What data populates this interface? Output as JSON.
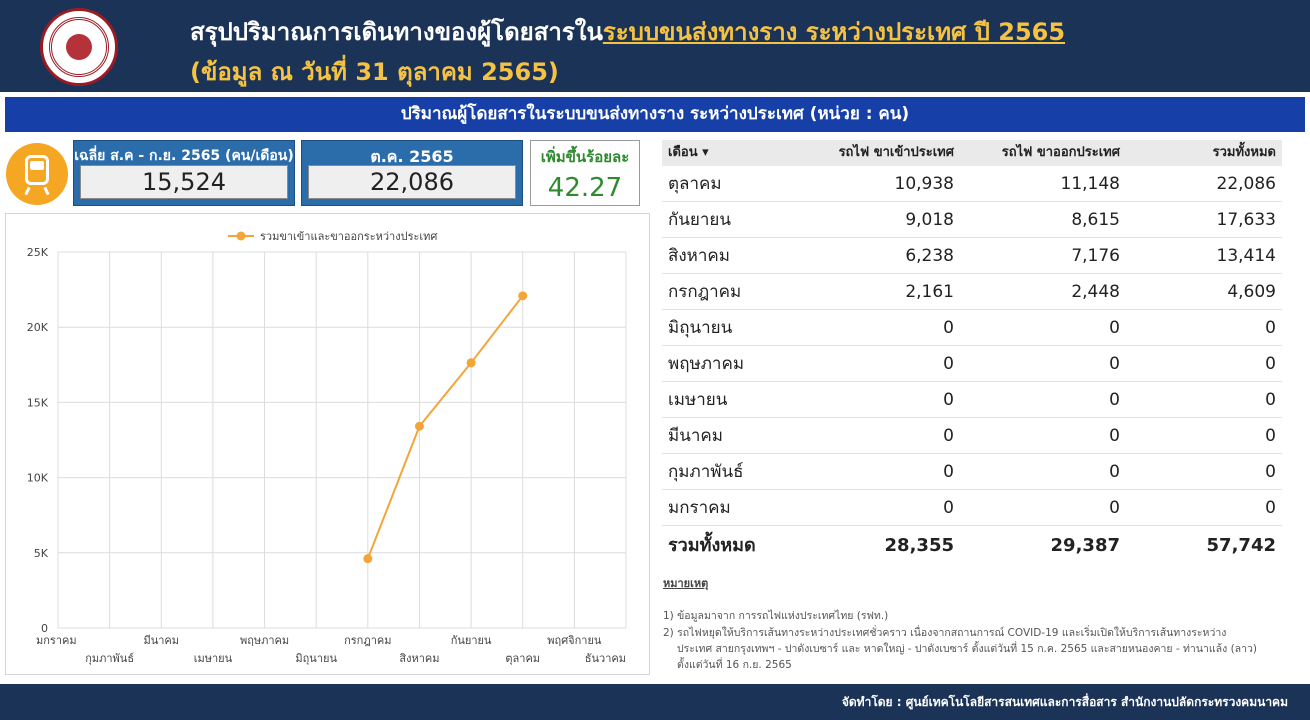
{
  "header": {
    "title_prefix": "สรุปปริมาณการเดินทางของผู้โดยสารใน",
    "title_highlight": "ระบบขนส่งทางราง ระหว่างประเทศ ปี 2565",
    "subtitle": "(ข้อมูล ณ วันที่ 31 ตุลาคม 2565)"
  },
  "section_title": "ปริมาณผู้โดยสารในระบบขนส่งทางราง ระหว่างประเทศ (หน่วย : คน)",
  "kpis": {
    "avg_label": "เฉลี่ย ส.ค - ก.ย. 2565 (คน/เดือน)",
    "avg_value": "15,524",
    "oct_label": "ต.ค. 2565",
    "oct_value": "22,086",
    "pct_label": "เพิ่มขึ้นร้อยละ",
    "pct_value": "42.27"
  },
  "chart_data": {
    "type": "line",
    "title": "",
    "xlabel": "",
    "ylabel": "",
    "legend": "top-center",
    "grid": true,
    "series": [
      {
        "name": "รวมขาเข้าและขาออกระหว่างประเทศ",
        "color": "#f4a53a",
        "values": [
          null,
          null,
          null,
          null,
          null,
          null,
          4609,
          13414,
          17633,
          22086,
          null,
          null
        ]
      }
    ],
    "categories": [
      "มกราคม",
      "กุมภาพันธ์",
      "มีนาคม",
      "เมษายน",
      "พฤษภาคม",
      "มิถุนายน",
      "กรกฎาคม",
      "สิงหาคม",
      "กันยายน",
      "ตุลาคม",
      "พฤศจิกายน",
      "ธันวาคม"
    ],
    "ylim": [
      0,
      25000
    ],
    "yticks": [
      0,
      5000,
      10000,
      15000,
      20000,
      25000
    ],
    "ytick_labels": [
      "0",
      "5K",
      "10K",
      "15K",
      "20K",
      "25K"
    ]
  },
  "table": {
    "headers": [
      "เดือน ▾",
      "รถไฟ ขาเข้าประเทศ",
      "รถไฟ ขาออกประเทศ",
      "รวมทั้งหมด"
    ],
    "rows": [
      [
        "ตุลาคม",
        "10,938",
        "11,148",
        "22,086"
      ],
      [
        "กันยายน",
        "9,018",
        "8,615",
        "17,633"
      ],
      [
        "สิงหาคม",
        "6,238",
        "7,176",
        "13,414"
      ],
      [
        "กรกฎาคม",
        "2,161",
        "2,448",
        "4,609"
      ],
      [
        "มิถุนายน",
        "0",
        "0",
        "0"
      ],
      [
        "พฤษภาคม",
        "0",
        "0",
        "0"
      ],
      [
        "เมษายน",
        "0",
        "0",
        "0"
      ],
      [
        "มีนาคม",
        "0",
        "0",
        "0"
      ],
      [
        "กุมภาพันธ์",
        "0",
        "0",
        "0"
      ],
      [
        "มกราคม",
        "0",
        "0",
        "0"
      ]
    ],
    "total": [
      "รวมทั้งหมด",
      "28,355",
      "29,387",
      "57,742"
    ]
  },
  "notes": {
    "title": "หมายเหตุ",
    "n1": "1) ข้อมูลมาจาก การรถไฟแห่งประเทศไทย (รฟท.)",
    "n2a": "2) รถไฟหยุดให้บริการเส้นทางระหว่างประเทศชั่วคราว เนื่องจากสถานการณ์ COVID-19 และเริ่มเปิดให้บริการเส้นทางระหว่าง",
    "n2b": "ประเทศ สายกรุงเทพฯ - ปาดังเบซาร์ และ หาดใหญ่ - ปาดังเบซาร์ ตั้งแต่วันที่ 15 ก.ค. 2565 และสายหนองคาย - ท่านาแล้ง (ลาว)",
    "n2c": "ตั้งแต่วันที่ 16 ก.ย. 2565"
  },
  "footer": "จัดทำโดย : ศูนย์เทคโนโลยีสารสนเทศและการสื่อสาร สำนักงานปลัดกระทรวงคมนาคม"
}
